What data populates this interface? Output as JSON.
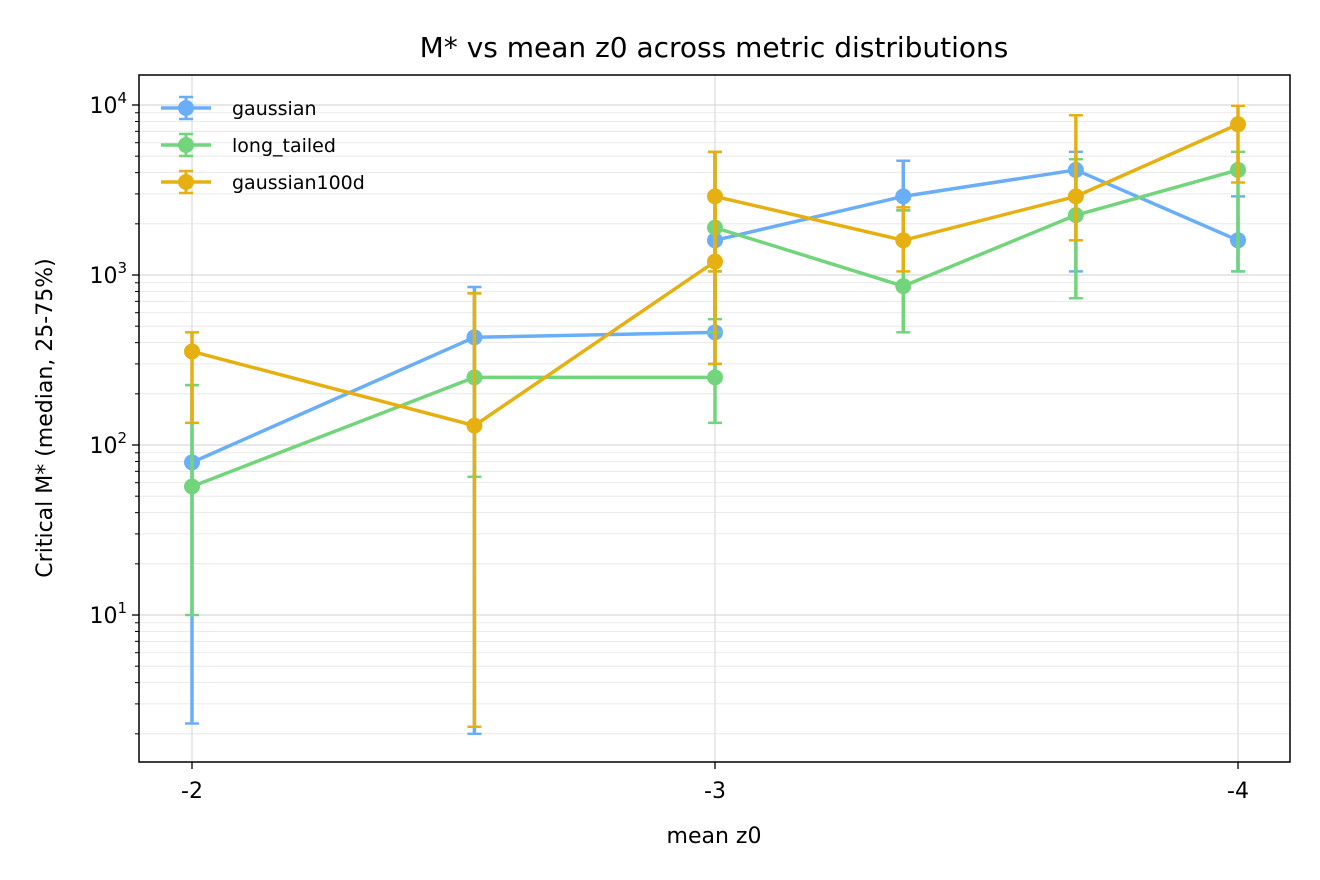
{
  "chart_data": {
    "type": "line",
    "title": "M* vs mean z0 across metric distributions",
    "xlabel": "mean z0",
    "ylabel": "Critical M* (median, 25-75%)",
    "y_scale": "log",
    "ylim": [
      1.3,
      15000
    ],
    "x_ticks": [
      {
        "label": "-2",
        "value": -2
      },
      {
        "label": "-3",
        "value": -3
      },
      {
        "label": "-4",
        "value": -4
      }
    ],
    "y_ticks": [
      {
        "base": "10",
        "exp": "1",
        "value": 10
      },
      {
        "base": "10",
        "exp": "2",
        "value": 100
      },
      {
        "base": "10",
        "exp": "3",
        "value": 1000
      },
      {
        "base": "10",
        "exp": "4",
        "value": 10000
      }
    ],
    "x": [
      -2.0,
      -2.54,
      -2.99,
      -3.0,
      -3.36,
      -3.69,
      -4.0
    ],
    "grid": true,
    "legend_position": "top-left",
    "series": [
      {
        "name": "gaussian",
        "color": "#6aaef7",
        "x": [
          -2.0,
          -2.54,
          -3.0,
          -3.0,
          -3.36,
          -3.69,
          -4.0
        ],
        "median": [
          79,
          430,
          460,
          1600,
          2900,
          4150,
          1600
        ],
        "low": [
          2.3,
          2.0,
          300,
          1050,
          2400,
          1050,
          1050
        ],
        "high": [
          225,
          850,
          1600,
          5300,
          4700,
          5300,
          2900
        ]
      },
      {
        "name": "long_tailed",
        "color": "#72d57b",
        "x": [
          -2.0,
          -2.54,
          -3.0,
          -3.0,
          -3.36,
          -3.69,
          -4.0
        ],
        "median": [
          57,
          250,
          250,
          1900,
          860,
          2250,
          4150
        ],
        "low": [
          10,
          65,
          135,
          550,
          460,
          730,
          1050
        ],
        "high": [
          225,
          780,
          460,
          5300,
          2400,
          4800,
          5300
        ]
      },
      {
        "name": "gaussian100d",
        "color": "#e6b012",
        "x": [
          -2.0,
          -2.54,
          -3.0,
          -3.0,
          -3.36,
          -3.69,
          -4.0
        ],
        "median": [
          355,
          130,
          1200,
          2900,
          1600,
          2900,
          7700
        ],
        "low": [
          135,
          2.2,
          300,
          1050,
          1050,
          1600,
          3500
        ],
        "high": [
          460,
          780,
          2900,
          5300,
          2500,
          8700,
          9900
        ]
      }
    ]
  }
}
